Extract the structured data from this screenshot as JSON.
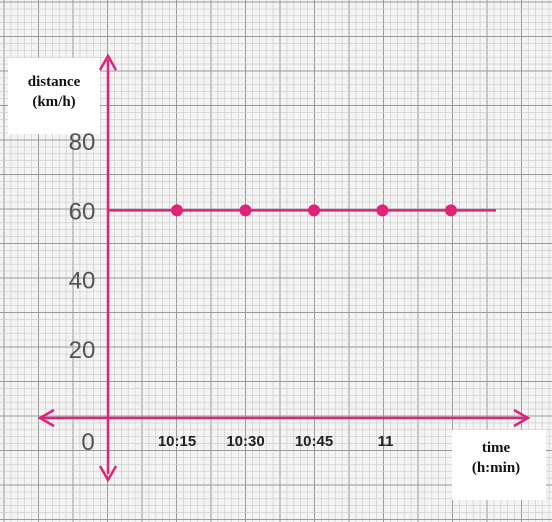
{
  "chart_data": {
    "type": "line",
    "title": "",
    "ylabel_lines": [
      "distance",
      "(km/h)"
    ],
    "xlabel_lines": [
      "time",
      "(h:min)"
    ],
    "origin_label": "0",
    "y_ticks": [
      "20",
      "40",
      "60",
      "80"
    ],
    "categories": [
      "10:15",
      "10:30",
      "10:45",
      "11",
      ""
    ],
    "series": [
      {
        "values": [
          60,
          60,
          60,
          60,
          60
        ]
      }
    ],
    "ylim": [
      0,
      100
    ],
    "grid": true,
    "colors": {
      "line": "#e0237a",
      "grid_minor": "#c9c9c9",
      "grid_major": "#9a9a9a",
      "background": "#f4f4f4"
    }
  }
}
